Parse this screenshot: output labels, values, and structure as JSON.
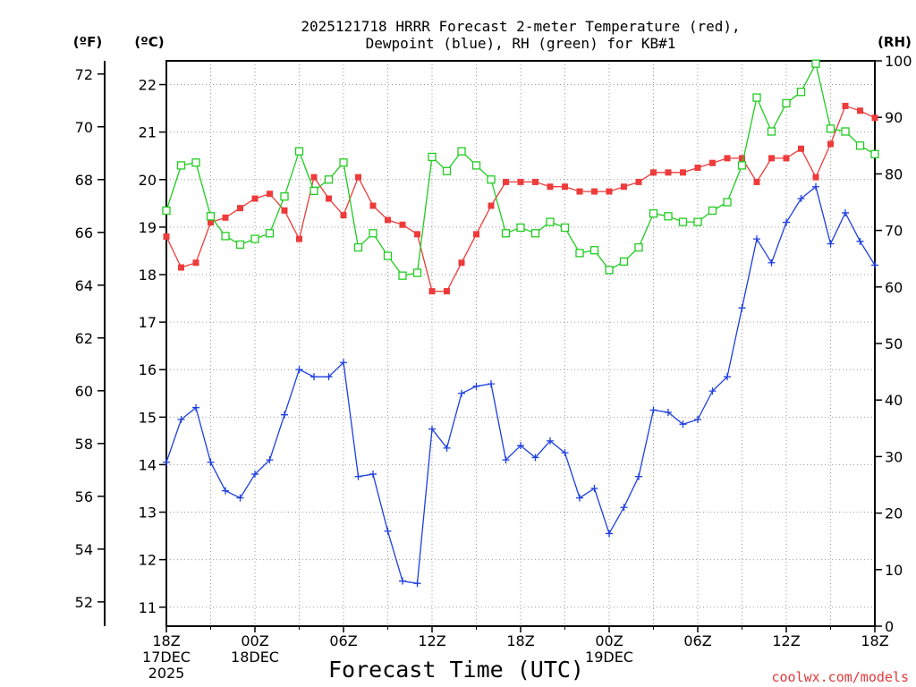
{
  "chart_data": {
    "type": "line",
    "title_line1": "2025121718 HRRR Forecast 2-meter Temperature (red),",
    "title_line2": "Dewpoint (blue), RH (green) for KB#1",
    "xlabel": "Forecast Time (UTC)",
    "credit": "coolwx.com/models",
    "unit_labels": {
      "fahrenheit": "(ºF)",
      "celsius": "(ºC)",
      "rh": "(RH)"
    },
    "celsius_axis": {
      "range": [
        10.6,
        22.5
      ],
      "ticks": [
        11,
        12,
        13,
        14,
        15,
        16,
        17,
        18,
        19,
        20,
        21,
        22
      ]
    },
    "fahrenheit_axis": {
      "range": [
        51.08,
        72.5
      ],
      "ticks": [
        52,
        54,
        56,
        58,
        60,
        62,
        64,
        66,
        68,
        70,
        72
      ]
    },
    "rh_axis": {
      "range": [
        0,
        100
      ],
      "ticks": [
        0,
        10,
        20,
        30,
        40,
        50,
        60,
        70,
        80,
        90,
        100
      ]
    },
    "x_range_hours": [
      0,
      48
    ],
    "x_ticks": [
      {
        "hour": 0,
        "lines": [
          "18Z",
          "17DEC",
          "2025"
        ]
      },
      {
        "hour": 6,
        "lines": [
          "00Z",
          "18DEC"
        ]
      },
      {
        "hour": 12,
        "lines": [
          "06Z"
        ]
      },
      {
        "hour": 18,
        "lines": [
          "12Z"
        ]
      },
      {
        "hour": 24,
        "lines": [
          "18Z"
        ]
      },
      {
        "hour": 30,
        "lines": [
          "00Z",
          "19DEC"
        ]
      },
      {
        "hour": 36,
        "lines": [
          "06Z"
        ]
      },
      {
        "hour": 42,
        "lines": [
          "12Z"
        ]
      },
      {
        "hour": 48,
        "lines": [
          "18Z"
        ]
      }
    ],
    "grid": true,
    "series": [
      {
        "name": "Temperature",
        "units": "C",
        "axis": "celsius",
        "color": "#ee3b3b",
        "marker": "filled-square",
        "values": [
          18.8,
          18.15,
          18.25,
          19.1,
          19.2,
          19.4,
          19.6,
          19.7,
          19.35,
          18.75,
          20.05,
          19.6,
          19.25,
          20.05,
          19.45,
          19.15,
          19.05,
          18.85,
          17.65,
          17.65,
          18.25,
          18.85,
          19.45,
          19.95,
          19.95,
          19.95,
          19.85,
          19.85,
          19.75,
          19.75,
          19.75,
          19.85,
          19.95,
          20.15,
          20.15,
          20.15,
          20.25,
          20.35,
          20.45,
          20.45,
          19.95,
          20.45,
          20.45,
          20.65,
          20.05,
          20.75,
          21.55,
          21.45,
          21.3
        ]
      },
      {
        "name": "Dewpoint",
        "units": "C",
        "axis": "celsius",
        "color": "#1e3fe0",
        "marker": "plus",
        "values": [
          14.05,
          14.95,
          15.2,
          14.05,
          13.45,
          13.3,
          13.8,
          14.1,
          15.05,
          16,
          15.85,
          15.85,
          16.15,
          13.75,
          13.8,
          12.6,
          11.55,
          11.5,
          14.75,
          14.35,
          15.5,
          15.65,
          15.7,
          14.1,
          14.4,
          14.15,
          14.5,
          14.25,
          13.3,
          13.5,
          12.55,
          13.1,
          13.75,
          15.15,
          15.1,
          14.85,
          14.95,
          15.55,
          15.85,
          17.3,
          18.75,
          18.25,
          19.1,
          19.6,
          19.85,
          18.65,
          19.3,
          18.7,
          18.2
        ]
      },
      {
        "name": "RH",
        "units": "%",
        "axis": "rh",
        "color": "#20cc20",
        "marker": "open-square",
        "values": [
          73.5,
          81.5,
          82,
          72.5,
          69,
          67.5,
          68.5,
          69.5,
          76,
          84,
          77,
          79,
          82,
          67,
          69.5,
          65.5,
          62,
          62.5,
          83,
          80.5,
          84,
          81.5,
          79,
          69.5,
          70.5,
          69.5,
          71.5,
          70.5,
          66,
          66.5,
          63,
          64.5,
          67,
          73,
          72.5,
          71.5,
          71.5,
          73.5,
          75,
          81.5,
          93.5,
          87.5,
          92.5,
          94.5,
          99.5,
          88,
          87.5,
          85,
          83.5
        ]
      }
    ]
  }
}
